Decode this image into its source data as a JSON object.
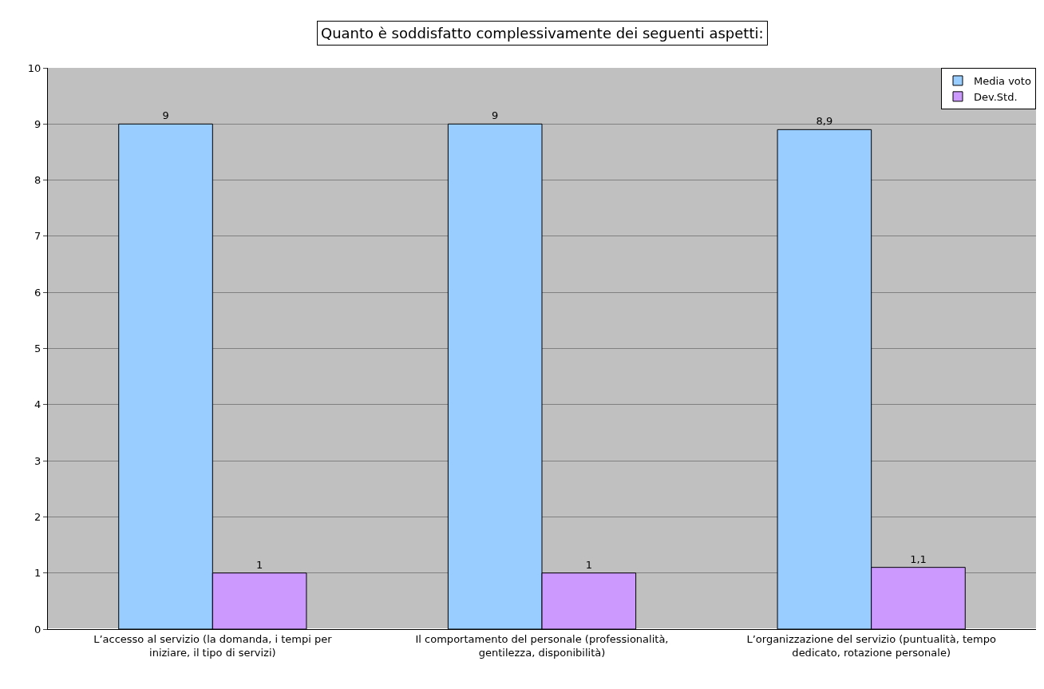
{
  "chart_data": {
    "type": "bar",
    "title": "Quanto è soddisfatto complessivamente dei seguenti aspetti:",
    "categories": [
      "L’accesso al servizio (la domanda, i tempi per iniziare, il tipo di servizi)",
      "Il comportamento del personale (professionalità, gentilezza, disponibilità)",
      "L’organizzazione del servizio (puntualità, tempo dedicato, rotazione personale)"
    ],
    "series": [
      {
        "name": "Media voto",
        "color": "#99ccff",
        "values": [
          9,
          9,
          8.9
        ],
        "value_labels": [
          "9",
          "9",
          "8,9"
        ]
      },
      {
        "name": "Dev.Std.",
        "color": "#cc99ff",
        "values": [
          1,
          1,
          1.1
        ],
        "value_labels": [
          "1",
          "1",
          "1,1"
        ]
      }
    ],
    "ylim": [
      0,
      10
    ],
    "yticks": [
      0,
      1,
      2,
      3,
      4,
      5,
      6,
      7,
      8,
      9,
      10
    ],
    "grid": "y",
    "legend": "top right"
  }
}
